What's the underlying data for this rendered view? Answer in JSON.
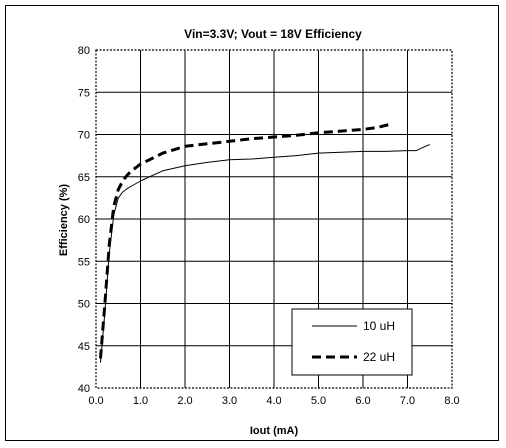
{
  "chart_data": {
    "type": "line",
    "title": "Vin=3.3V; Vout = 18V Efficiency",
    "xlabel": "Iout (mA)",
    "ylabel": "Efficiency (%)",
    "xlim": [
      0,
      8
    ],
    "ylim": [
      40,
      80
    ],
    "xticks": [
      "0.0",
      "1.0",
      "2.0",
      "3.0",
      "4.0",
      "5.0",
      "6.0",
      "7.0",
      "8.0"
    ],
    "yticks": [
      "40",
      "45",
      "50",
      "55",
      "60",
      "65",
      "70",
      "75",
      "80"
    ],
    "grid": true,
    "legend_position": "bottom-right",
    "series": [
      {
        "name": "10 uH",
        "style": "solid",
        "color": "#000000",
        "x": [
          0.1,
          0.2,
          0.3,
          0.4,
          0.5,
          0.6,
          0.7,
          0.8,
          1.0,
          1.2,
          1.5,
          2.0,
          2.5,
          3.0,
          3.5,
          4.0,
          4.5,
          5.0,
          5.5,
          6.0,
          6.5,
          7.0,
          7.2,
          7.4,
          7.5
        ],
        "y": [
          43,
          49,
          56,
          60.5,
          62.5,
          63.2,
          63.6,
          63.9,
          64.5,
          65,
          65.7,
          66.3,
          66.7,
          67,
          67.1,
          67.3,
          67.5,
          67.8,
          67.9,
          68,
          68,
          68.1,
          68.1,
          68.6,
          68.8
        ]
      },
      {
        "name": "22 uH",
        "style": "dashed",
        "color": "#000000",
        "x": [
          0.1,
          0.2,
          0.3,
          0.4,
          0.5,
          0.6,
          0.7,
          0.8,
          1.0,
          1.2,
          1.5,
          2.0,
          2.5,
          3.0,
          3.5,
          4.0,
          4.5,
          5.0,
          5.5,
          6.0,
          6.3,
          6.6
        ],
        "y": [
          43.5,
          50,
          57,
          61.5,
          63.5,
          64.5,
          65.2,
          65.7,
          66.5,
          67,
          67.8,
          68.6,
          68.9,
          69.2,
          69.5,
          69.7,
          69.9,
          70.2,
          70.4,
          70.6,
          70.8,
          71.2
        ]
      }
    ]
  }
}
